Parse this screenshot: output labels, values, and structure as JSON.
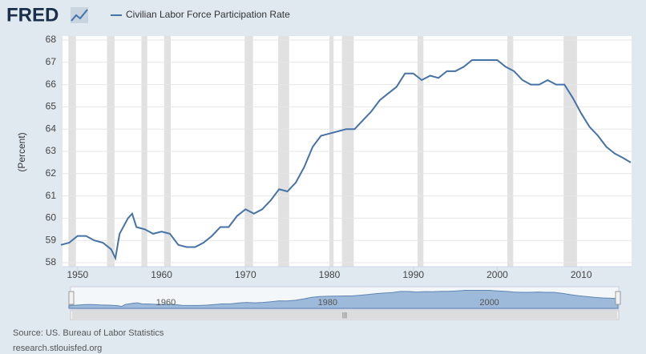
{
  "brand": "FRED",
  "chart_data": {
    "type": "line",
    "series": [
      {
        "name": "Civilian Labor Force Participation Rate",
        "color": "#4572a7",
        "values": [
          58.8,
          58.9,
          59.2,
          59.2,
          59.0,
          58.9,
          58.6,
          58.2,
          59.3,
          60.0,
          60.2,
          59.6,
          59.5,
          59.3,
          59.4,
          59.3,
          58.8,
          58.7,
          58.7,
          58.9,
          59.2,
          59.6,
          59.6,
          60.1,
          60.4,
          60.2,
          60.4,
          60.8,
          61.3,
          61.2,
          61.6,
          62.3,
          63.2,
          63.7,
          63.8,
          63.9,
          64.0,
          64.0,
          64.4,
          64.8,
          65.3,
          65.6,
          65.9,
          66.5,
          66.5,
          66.2,
          66.4,
          66.3,
          66.6,
          66.6,
          66.8,
          67.1,
          67.1,
          67.1,
          67.1,
          66.8,
          66.6,
          66.2,
          66.0,
          66.0,
          66.2,
          66.0,
          66.0,
          65.4,
          64.7,
          64.1,
          63.7,
          63.2,
          62.9,
          62.7,
          62.5
        ]
      }
    ],
    "x": [
      1948,
      1949,
      1950,
      1951,
      1952,
      1953,
      1954,
      1954.5,
      1955,
      1956,
      1956.5,
      1957,
      1958,
      1959,
      1960,
      1961,
      1962,
      1963,
      1964,
      1965,
      1966,
      1967,
      1968,
      1969,
      1970,
      1971,
      1972,
      1973,
      1974,
      1975,
      1976,
      1977,
      1978,
      1979,
      1980,
      1981,
      1982,
      1983,
      1984,
      1985,
      1986,
      1987,
      1988,
      1989,
      1990,
      1991,
      1992,
      1993,
      1994,
      1995,
      1996,
      1997,
      1998,
      1999,
      2000,
      2001,
      2002,
      2003,
      2004,
      2005,
      2006,
      2007,
      2008,
      2009,
      2010,
      2011,
      2012,
      2013,
      2014,
      2015,
      2015.9
    ],
    "recessions": [
      [
        1948.9,
        1949.8
      ],
      [
        1953.5,
        1954.4
      ],
      [
        1957.6,
        1958.3
      ],
      [
        1960.3,
        1961.1
      ],
      [
        1969.9,
        1970.9
      ],
      [
        1973.9,
        1975.2
      ],
      [
        1980.0,
        1980.5
      ],
      [
        1981.5,
        1982.9
      ],
      [
        1990.5,
        1991.2
      ],
      [
        2001.2,
        2001.9
      ],
      [
        2007.9,
        2009.5
      ]
    ],
    "recession_color": "#e1e1e1",
    "xlim": [
      1948.2,
      2016
    ],
    "xticks": [
      1950,
      1960,
      1970,
      1980,
      1990,
      2000,
      2010
    ],
    "ylim": [
      58,
      68
    ],
    "yticks": [
      58,
      59,
      60,
      61,
      62,
      63,
      64,
      65,
      66,
      67,
      68
    ],
    "ylabel": "(Percent)",
    "grid": true,
    "navigator": {
      "xticks": [
        1960,
        1980,
        2000
      ],
      "color": "#8fb0d6"
    }
  },
  "footer": {
    "source": "Source: US. Bureau of Labor Statistics",
    "site": "research.stlouisfed.org"
  }
}
